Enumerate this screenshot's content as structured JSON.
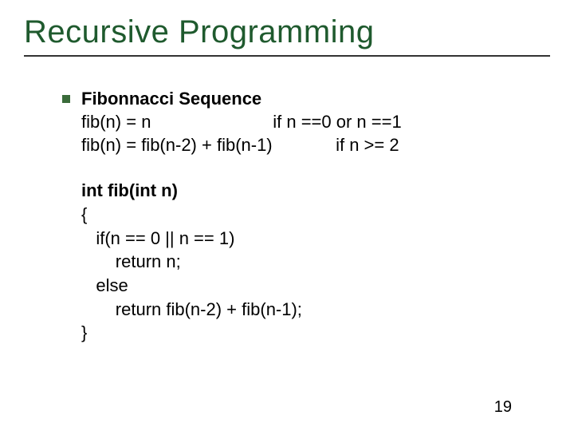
{
  "title": "Recursive Programming",
  "section_heading": "Fibonnacci Sequence",
  "def_line1": "fib(n) = n                         if n ==0 or n ==1",
  "def_line2": "fib(n) = fib(n-2) + fib(n-1)             if n >= 2",
  "code": {
    "l1": "int fib(int n)",
    "l2": "{",
    "l3": "   if(n == 0 || n == 1)",
    "l4": "       return n;",
    "l5": "   else",
    "l6": "       return fib(n-2) + fib(n-1);",
    "l7": "}"
  },
  "page_number": "19",
  "colors": {
    "title": "#1f5a2e",
    "bullet": "#3a6b3a",
    "rule": "#333333",
    "text": "#000000",
    "background": "#ffffff"
  },
  "fonts": {
    "title_size_pt": 30,
    "body_size_pt": 17,
    "family": "Arial"
  }
}
